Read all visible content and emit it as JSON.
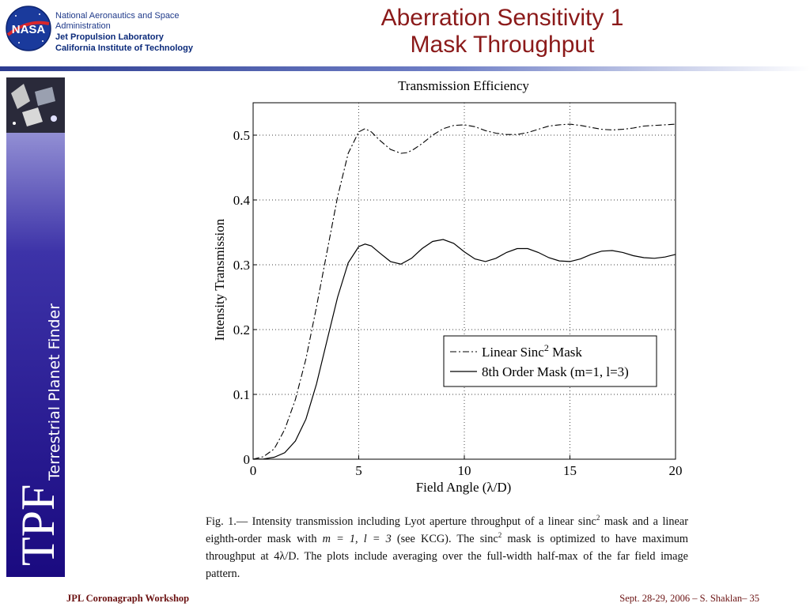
{
  "header": {
    "logo_text": "NASA",
    "org_lines": [
      "National Aeronautics and Space",
      "Administration"
    ],
    "lab_lines": [
      "Jet Propulsion Laboratory",
      "California Institute of Technology"
    ],
    "title_lines": [
      "Aberration Sensitivity 1",
      "Mask Throughput"
    ]
  },
  "banner": {
    "acronym": "TPF",
    "name": "Terrestrial Planet Finder"
  },
  "colors": {
    "title": "#8b1a1a",
    "org_text": "#1f3a8a",
    "banner_top": "#b9b9e8",
    "banner_bottom": "#1a0a80",
    "footer": "#6b1212"
  },
  "chart_data": {
    "type": "line",
    "title": "Transmission Efficiency",
    "xlabel": "Field Angle (λ/D)",
    "ylabel": "Intensity Transmission",
    "xlim": [
      0,
      20
    ],
    "ylim": [
      0,
      0.55
    ],
    "xticks": [
      "0",
      "5",
      "10",
      "15",
      "20"
    ],
    "yticks": [
      "0",
      "0.1",
      "0.2",
      "0.3",
      "0.4",
      "0.5"
    ],
    "grid": true,
    "legend_position": "lower-right",
    "series": [
      {
        "name": "Linear Sinc² Mask",
        "style": "dash-dot",
        "x": [
          0,
          0.5,
          1,
          1.5,
          2,
          2.5,
          3,
          3.5,
          4,
          4.5,
          5,
          5.3,
          5.6,
          6,
          6.5,
          7,
          7.3,
          7.6,
          8,
          8.5,
          9,
          9.5,
          10,
          10.5,
          11,
          11.5,
          12,
          12.5,
          13,
          13.5,
          14,
          14.5,
          15,
          15.5,
          16,
          16.5,
          17,
          17.5,
          18,
          18.5,
          19,
          19.5,
          20
        ],
        "y": [
          0,
          0.004,
          0.016,
          0.046,
          0.092,
          0.155,
          0.235,
          0.32,
          0.405,
          0.472,
          0.505,
          0.51,
          0.505,
          0.492,
          0.478,
          0.472,
          0.473,
          0.478,
          0.487,
          0.5,
          0.51,
          0.515,
          0.516,
          0.513,
          0.507,
          0.503,
          0.501,
          0.501,
          0.504,
          0.509,
          0.514,
          0.516,
          0.517,
          0.515,
          0.512,
          0.509,
          0.508,
          0.509,
          0.511,
          0.514,
          0.515,
          0.516,
          0.517
        ]
      },
      {
        "name": "8th Order Mask (m=1, l=3)",
        "style": "solid",
        "x": [
          0,
          0.5,
          1,
          1.5,
          2,
          2.5,
          3,
          3.5,
          4,
          4.5,
          5,
          5.3,
          5.6,
          6,
          6.5,
          7,
          7.5,
          8,
          8.5,
          9,
          9.5,
          10,
          10.5,
          11,
          11.5,
          12,
          12.5,
          13,
          13.5,
          14,
          14.5,
          15,
          15.5,
          16,
          16.5,
          17,
          17.5,
          18,
          18.5,
          19,
          19.5,
          20
        ],
        "y": [
          0,
          0.0004,
          0.003,
          0.01,
          0.028,
          0.062,
          0.116,
          0.183,
          0.25,
          0.303,
          0.328,
          0.332,
          0.329,
          0.318,
          0.305,
          0.301,
          0.31,
          0.325,
          0.336,
          0.339,
          0.333,
          0.32,
          0.309,
          0.305,
          0.31,
          0.319,
          0.325,
          0.325,
          0.319,
          0.311,
          0.306,
          0.305,
          0.309,
          0.316,
          0.321,
          0.322,
          0.319,
          0.314,
          0.311,
          0.31,
          0.312,
          0.316
        ]
      }
    ]
  },
  "caption": {
    "pre_sup1": "Fig. 1.— Intensity transmission including Lyot aperture throughput of a linear sinc",
    "sup1": "2",
    "post_sup1_line1": " mask",
    "line2_a": "and a linear eighth-order mask with ",
    "line2_m": "m = 1",
    "line2_b": ", ",
    "line2_l": "l = 3",
    "line2_c": " (see KCG). The sinc",
    "sup2": "2",
    "line2_d": " mask is optimized to",
    "line3": "have maximum throughput at 4λ/D. The plots include averaging over the full-width half-max",
    "line4": "of the far field image pattern."
  },
  "footer": {
    "left": "JPL Coronagraph Workshop",
    "right": "Sept. 28-29, 2006  –   S. Shaklan– 35"
  }
}
